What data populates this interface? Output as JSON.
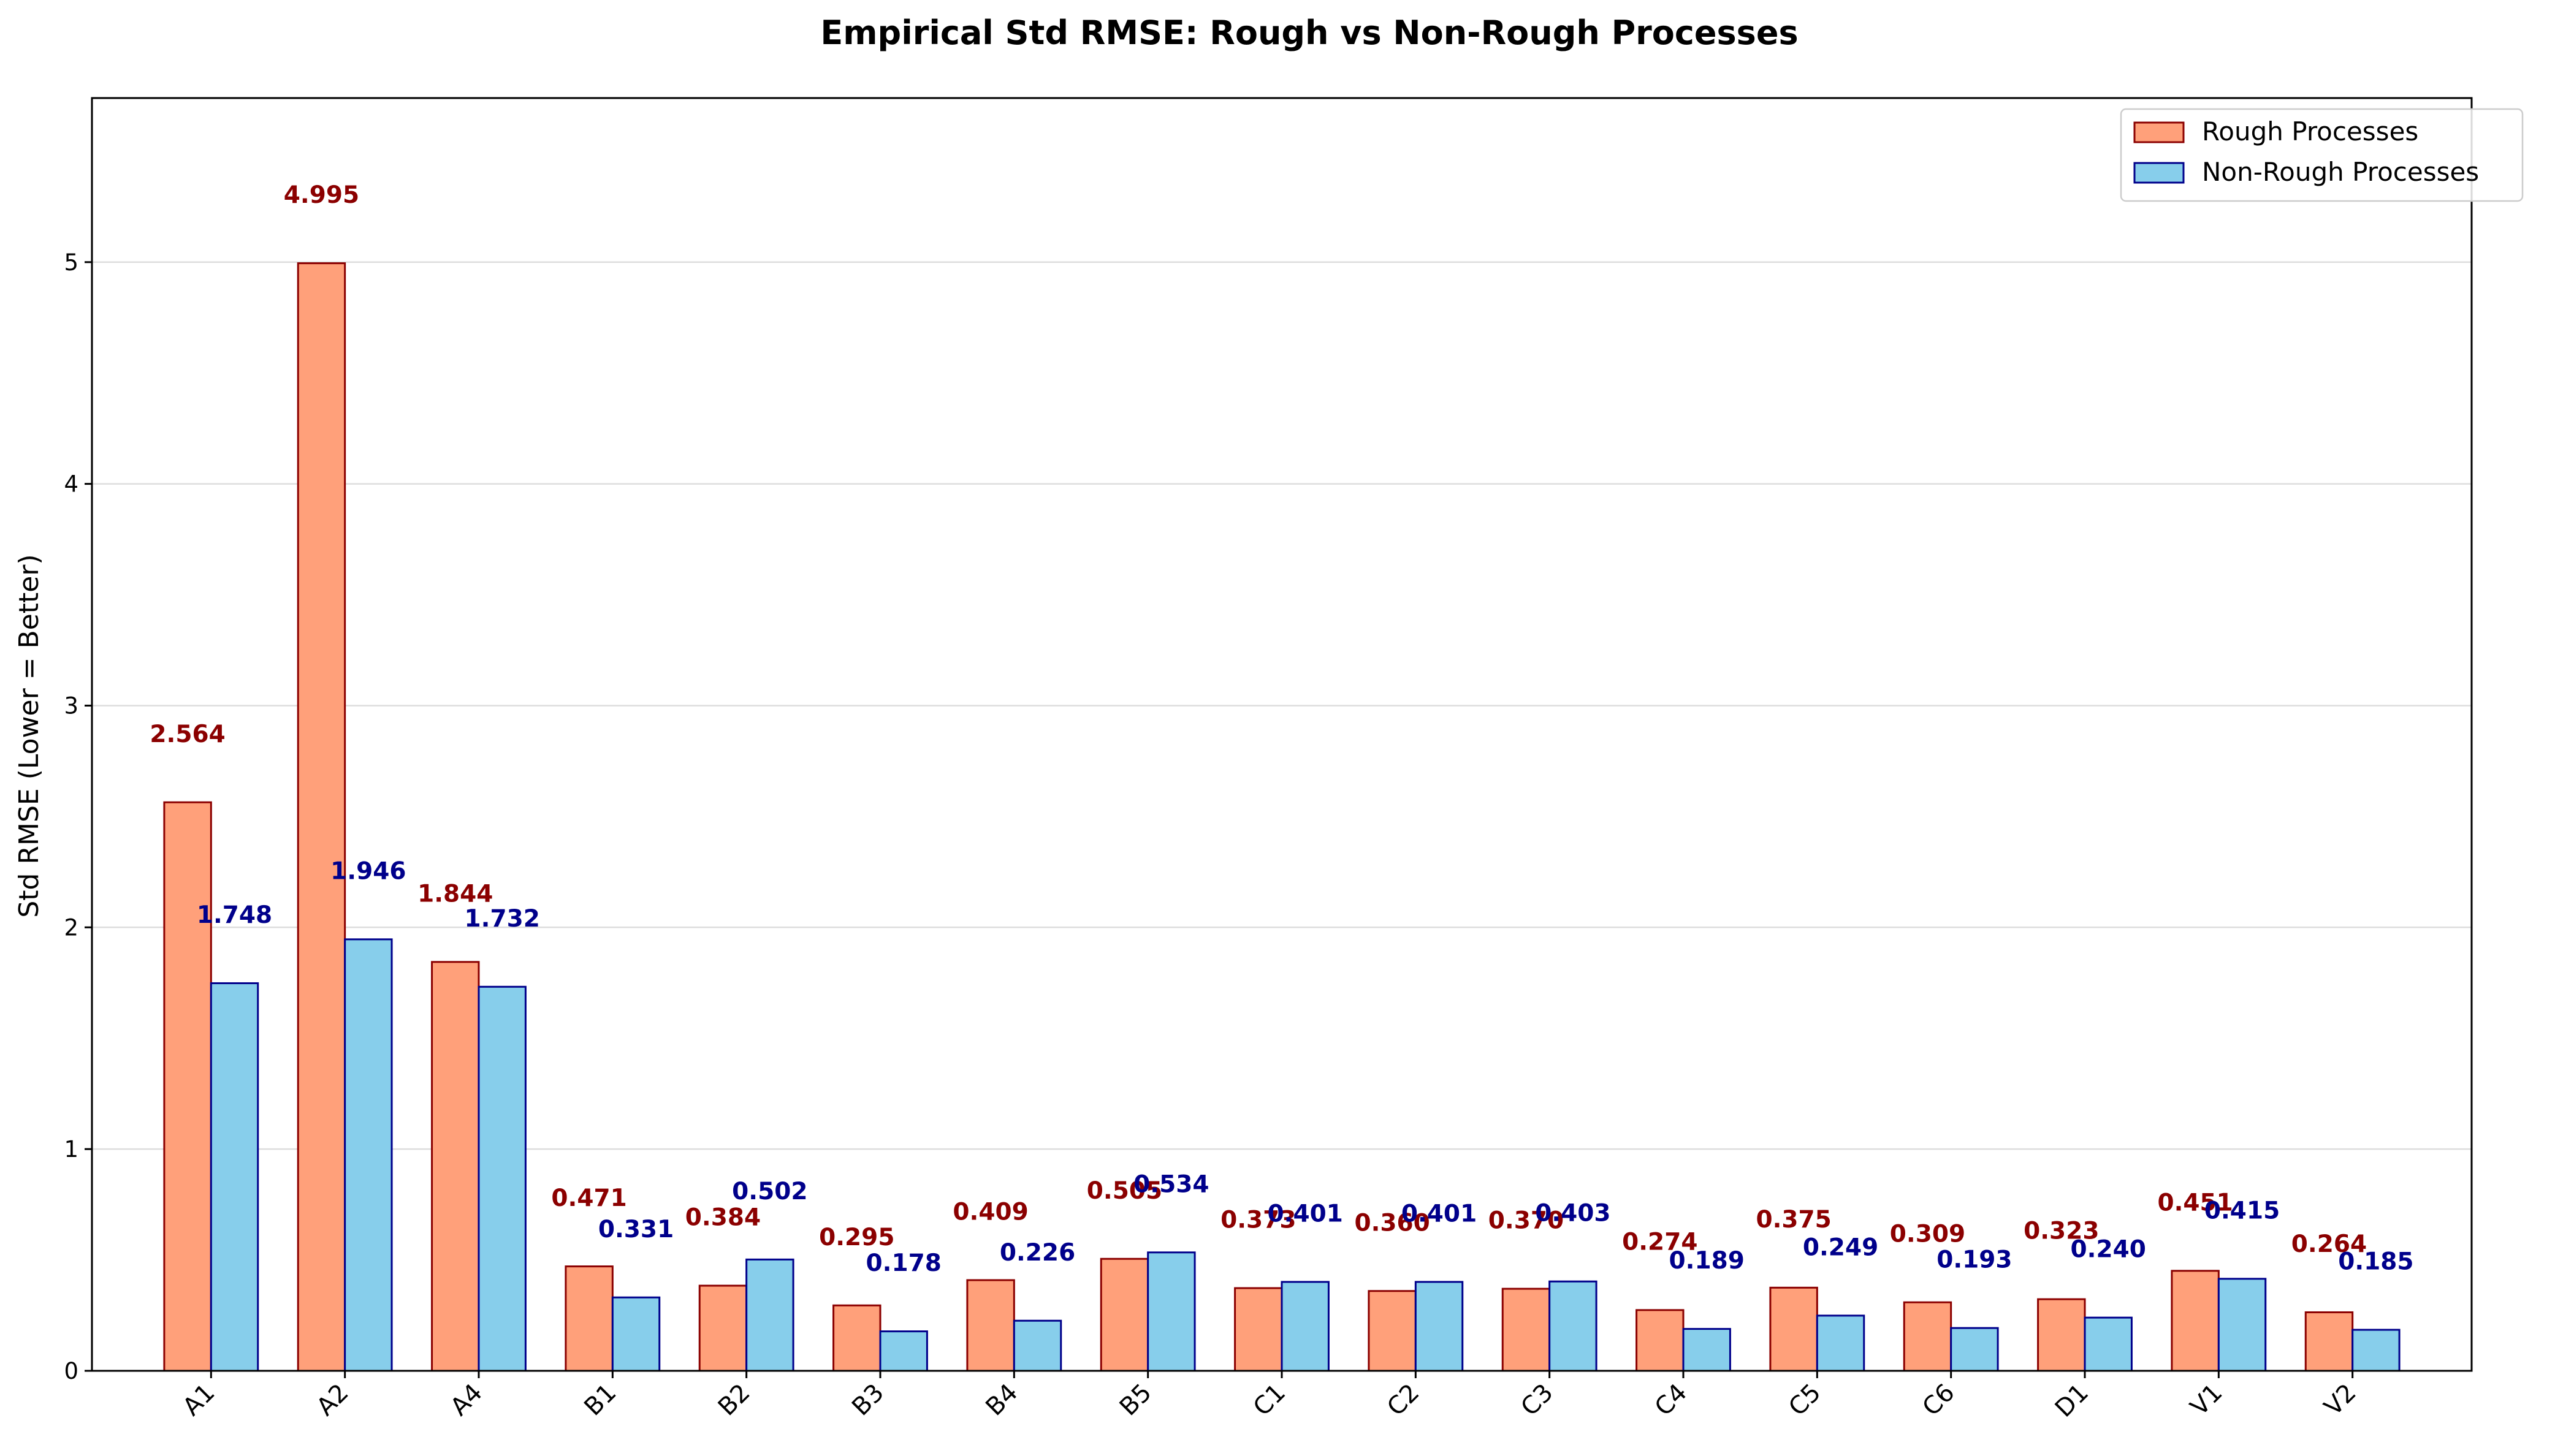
{
  "chart_data": {
    "type": "bar",
    "title": "Empirical Std RMSE: Rough vs Non-Rough Processes",
    "xlabel": "",
    "ylabel": "Std RMSE (Lower = Better)",
    "ylim": [
      0,
      5.74
    ],
    "yticks": [
      0,
      1,
      2,
      3,
      4,
      5
    ],
    "grid": "y",
    "legend_position": "top-right",
    "categories": [
      "A1",
      "A2",
      "A4",
      "B1",
      "B2",
      "B3",
      "B4",
      "B5",
      "C1",
      "C2",
      "C3",
      "C4",
      "C5",
      "C6",
      "D1",
      "V1",
      "V2"
    ],
    "series": [
      {
        "name": "Rough Processes",
        "fill": "#FFA07A",
        "edge": "#8B0000",
        "label_color": "#8B0000",
        "values": [
          2.564,
          4.995,
          1.844,
          0.471,
          0.384,
          0.295,
          0.409,
          0.505,
          0.373,
          0.36,
          0.37,
          0.274,
          0.375,
          0.309,
          0.323,
          0.451,
          0.264
        ],
        "labels": [
          "2.564",
          "4.995",
          "1.844",
          "0.471",
          "0.384",
          "0.295",
          "0.409",
          "0.505",
          "0.373",
          "0.360",
          "0.370",
          "0.274",
          "0.375",
          "0.309",
          "0.323",
          "0.451",
          "0.264"
        ]
      },
      {
        "name": "Non-Rough Processes",
        "fill": "#87CEEB",
        "edge": "#00008B",
        "label_color": "#00008B",
        "values": [
          1.748,
          1.946,
          1.732,
          0.331,
          0.502,
          0.178,
          0.226,
          0.534,
          0.401,
          0.401,
          0.403,
          0.189,
          0.249,
          0.193,
          0.24,
          0.415,
          0.185
        ],
        "labels": [
          "1.748",
          "1.946",
          "1.732",
          "0.331",
          "0.502",
          "0.178",
          "0.226",
          "0.534",
          "0.401",
          "0.401",
          "0.403",
          "0.189",
          "0.249",
          "0.193",
          "0.240",
          "0.415",
          "0.185"
        ]
      }
    ]
  }
}
